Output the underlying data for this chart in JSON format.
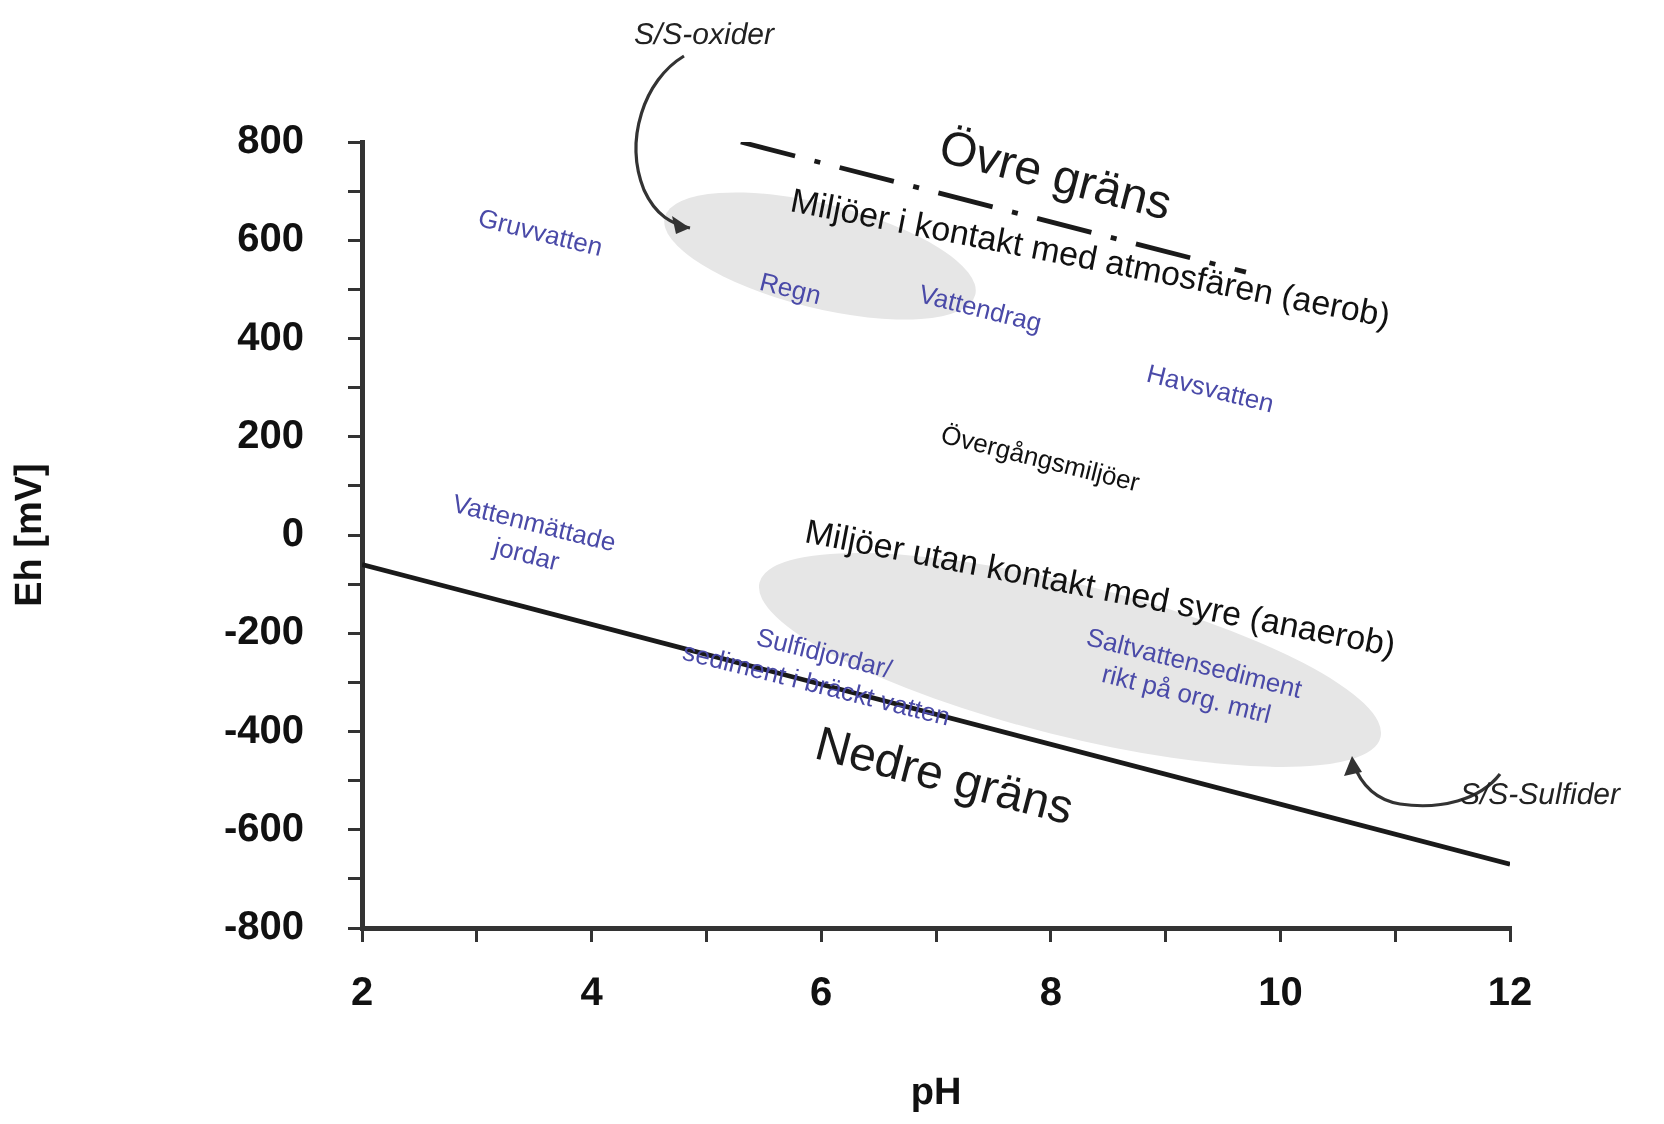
{
  "chart_data": {
    "type": "line",
    "xlabel": "pH",
    "ylabel": "Eh [mV]",
    "xlim": [
      2,
      12
    ],
    "xticks": [
      2,
      {
        "value": 3,
        "label": null
      },
      4,
      {
        "value": 5,
        "label": null
      },
      6,
      {
        "value": 7,
        "label": null
      },
      8,
      {
        "value": 9,
        "label": null
      },
      10,
      {
        "value": 11,
        "label": null
      },
      12
    ],
    "ylim": [
      -800,
      800
    ],
    "yticks": [
      -800,
      {
        "value": -700,
        "label": null
      },
      -600,
      {
        "value": -500,
        "label": null
      },
      -400,
      {
        "value": -300,
        "label": null
      },
      -200,
      {
        "value": -100,
        "label": null
      },
      0,
      {
        "value": 100,
        "label": null
      },
      200,
      {
        "value": 300,
        "label": null
      },
      400,
      {
        "value": 500,
        "label": null
      },
      600,
      {
        "value": 700,
        "label": null
      },
      800
    ],
    "series": [
      {
        "name": "Övre gräns",
        "color": "#1a1a1a",
        "x": [
          5.3,
          9.7
        ],
        "values": [
          800,
          535
        ],
        "line_style": "dashed"
      },
      {
        "name": "Nedre gräns",
        "color": "#1a1a1a",
        "x": [
          2,
          12
        ],
        "values": [
          -60,
          -670
        ],
        "line_style": "solid"
      }
    ],
    "annotations": [
      "S/S-oxider",
      "Gruvvatten",
      "Miljöer i kontakt med atmosfären (aerob)",
      "Regn",
      "Vattendrag",
      "Havsvatten",
      "Övergångsmiljöer",
      "Miljöer utan kontakt med syre (anaerob)",
      "Vattenmättade\njordar",
      "Sulfidjordar/\nsediment i bräckt vatten",
      "Saltvattensediment\nrikt på org. mtrl",
      "S/S-Sulfider"
    ],
    "grid": false,
    "legend": false,
    "marker": "none"
  }
}
